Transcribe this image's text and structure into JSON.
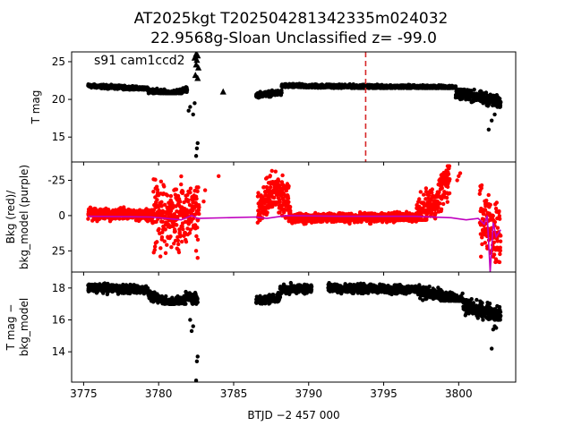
{
  "chart_data": {
    "title_line1": "AT2025kgt  T202504281342335m024032",
    "title_line2": "22.9568g-Sloan Unclassified z= -99.0",
    "xlabel": "BTJD −2 457 000",
    "x_ticks": [
      3775,
      3780,
      3785,
      3790,
      3795,
      3800
    ],
    "xlim": [
      3774.2,
      3803.8
    ],
    "panels": [
      {
        "id": "tmag",
        "type": "scatter",
        "ylabel": "T mag",
        "ylim": [
          26.3,
          11.7
        ],
        "y_ticks": [
          15,
          20,
          25
        ],
        "annotation": "s91 cam1ccd2",
        "vline": {
          "x": 3793.8,
          "color": "#d62728"
        },
        "series": [
          {
            "color": "#000000",
            "marker": "circle",
            "segments": [
              {
                "x0": 3775.3,
                "x1": 3779.3,
                "y": [
                  21.3,
                  22.0
                ],
                "trend": [
                  [
                    0,
                    21.8
                  ],
                  [
                    1,
                    21.4
                  ]
                ]
              },
              {
                "x0": 3779.3,
                "x1": 3781.9,
                "y": [
                  20.8,
                  21.8
                ],
                "trend": [
                  [
                    0,
                    21.2
                  ],
                  [
                    0.6,
                    20.8
                  ],
                  [
                    1,
                    21.3
                  ]
                ]
              },
              {
                "x0": 3786.5,
                "x1": 3788.2,
                "y": [
                  20.2,
                  21.2
                ],
                "trend": [
                  [
                    0,
                    20.6
                  ],
                  [
                    1,
                    20.9
                  ]
                ]
              },
              {
                "x0": 3788.2,
                "x1": 3799.8,
                "y": [
                  21.5,
                  22.2
                ],
                "trend": [
                  [
                    0,
                    21.8
                  ],
                  [
                    1,
                    21.6
                  ]
                ]
              },
              {
                "x0": 3799.8,
                "x1": 3802.8,
                "y": [
                  19.0,
                  21.3
                ],
                "trend": [
                  [
                    0,
                    21.0
                  ],
                  [
                    0.8,
                    19.9
                  ],
                  [
                    1,
                    19.5
                  ]
                ]
              }
            ],
            "points": [
              [
                3782.0,
                18.5
              ],
              [
                3782.1,
                19.0
              ],
              [
                3782.3,
                18.0
              ],
              [
                3782.4,
                19.5
              ],
              [
                3782.5,
                12.5
              ],
              [
                3782.55,
                13.5
              ],
              [
                3782.6,
                14.2
              ],
              [
                3802.0,
                16.0
              ],
              [
                3802.2,
                17.2
              ],
              [
                3802.4,
                18.0
              ]
            ]
          },
          {
            "color": "#000000",
            "marker": "triangle",
            "points": [
              [
                3784.3,
                21.0
              ],
              [
                3782.45,
                23.2
              ],
              [
                3782.5,
                24.6
              ],
              [
                3782.55,
                25.2
              ],
              [
                3782.6,
                25.8
              ],
              [
                3782.65,
                24.2
              ],
              [
                3782.5,
                26.0
              ],
              [
                3782.4,
                25.5
              ],
              [
                3782.6,
                22.8
              ]
            ]
          }
        ]
      },
      {
        "id": "bkg",
        "type": "scatter+line",
        "ylabel_line1": "Bkg (red)/",
        "ylabel_line2": "bkg_model (purple)",
        "ylim": [
          -38,
          40
        ],
        "y_ticks": [
          -25,
          0,
          25
        ],
        "series": [
          {
            "name": "Bkg",
            "color": "#ff0000",
            "marker": "circle",
            "segments": [
              {
                "x0": 3775.3,
                "x1": 3779.6,
                "y": [
                  -8,
                  4
                ],
                "trend": [
                  [
                    0,
                    -1
                  ],
                  [
                    1,
                    -1
                  ]
                ]
              },
              {
                "x0": 3779.6,
                "x1": 3781.6,
                "y": [
                  -35,
                  35
                ],
                "trend": [
                  [
                    0,
                    0
                  ],
                  [
                    1,
                    0
                  ]
                ]
              },
              {
                "x0": 3781.6,
                "x1": 3782.7,
                "y": [
                  -20,
                  32
                ],
                "trend": [
                  [
                    0,
                    3
                  ],
                  [
                    1,
                    -5
                  ]
                ]
              },
              {
                "x0": 3786.6,
                "x1": 3788.8,
                "y": [
                  -35,
                  5
                ],
                "trend": [
                  [
                    0,
                    -2
                  ],
                  [
                    0.5,
                    -20
                  ],
                  [
                    1,
                    -5
                  ]
                ]
              },
              {
                "x0": 3788.8,
                "x1": 3797.2,
                "y": [
                  -4,
                  6
                ],
                "trend": [
                  [
                    0,
                    2
                  ],
                  [
                    1,
                    1
                  ]
                ]
              },
              {
                "x0": 3797.2,
                "x1": 3799.4,
                "y": [
                  -35,
                  3
                ],
                "trend": [
                  [
                    0,
                    0
                  ],
                  [
                    0.6,
                    -10
                  ],
                  [
                    1,
                    -30
                  ]
                ]
              },
              {
                "x0": 3801.4,
                "x1": 3802.8,
                "y": [
                  -30,
                  33
                ],
                "trend": [
                  [
                    0,
                    0
                  ],
                  [
                    1,
                    15
                  ]
                ]
              }
            ],
            "points": [
              [
                3784.0,
                -28
              ],
              [
                3783.0,
                -10
              ],
              [
                3783.1,
                -18
              ],
              [
                3800.0,
                -28
              ],
              [
                3800.1,
                -30
              ],
              [
                3799.9,
                -25
              ],
              [
                3782.5,
                25
              ],
              [
                3782.6,
                30
              ]
            ]
          },
          {
            "name": "bkg_model",
            "color": "#bf00bf",
            "line": [
              [
                3775.3,
                0.5
              ],
              [
                3778.0,
                0.8
              ],
              [
                3779.5,
                1.0
              ],
              [
                3780.5,
                2.0
              ],
              [
                3781.5,
                3.0
              ],
              [
                3782.2,
                0.0
              ],
              [
                3782.6,
                2.0
              ],
              [
                3786.5,
                1.0
              ],
              [
                3787.2,
                2.0
              ],
              [
                3788.5,
                0.0
              ],
              [
                3792.0,
                0.5
              ],
              [
                3797.0,
                0.5
              ],
              [
                3799.5,
                1.5
              ],
              [
                3800.5,
                3.0
              ],
              [
                3801.3,
                2.0
              ],
              [
                3801.7,
                6.0
              ],
              [
                3801.9,
                0.0
              ],
              [
                3802.1,
                40.0
              ],
              [
                3802.3,
                5.0
              ],
              [
                3802.5,
                15.0
              ],
              [
                3802.8,
                10.0
              ]
            ]
          }
        ]
      },
      {
        "id": "diff",
        "type": "scatter",
        "ylabel_line1": "T mag −",
        "ylabel_line2": "bkg_model",
        "ylim": [
          19.0,
          12.1
        ],
        "y_ticks": [
          14,
          16,
          18
        ],
        "series": [
          {
            "color": "#000000",
            "marker": "circle",
            "segments": [
              {
                "x0": 3775.3,
                "x1": 3779.3,
                "y": [
                  17.6,
                  18.4
                ],
                "trend": [
                  [
                    0,
                    18.0
                  ],
                  [
                    1,
                    17.9
                  ]
                ]
              },
              {
                "x0": 3779.3,
                "x1": 3781.8,
                "y": [
                  17.0,
                  17.8
                ],
                "trend": [
                  [
                    0,
                    17.5
                  ],
                  [
                    0.6,
                    17.1
                  ],
                  [
                    1,
                    17.3
                  ]
                ]
              },
              {
                "x0": 3781.8,
                "x1": 3782.6,
                "y": [
                  17.0,
                  18.2
                ],
                "trend": [
                  [
                    0,
                    17.6
                  ],
                  [
                    1,
                    17.2
                  ]
                ]
              },
              {
                "x0": 3786.5,
                "x1": 3788.1,
                "y": [
                  16.9,
                  17.7
                ],
                "trend": [
                  [
                    0,
                    17.2
                  ],
                  [
                    1,
                    17.4
                  ]
                ]
              },
              {
                "x0": 3788.1,
                "x1": 3790.2,
                "y": [
                  17.6,
                  18.4
                ],
                "trend": [
                  [
                    0,
                    17.9
                  ],
                  [
                    1,
                    18.0
                  ]
                ]
              },
              {
                "x0": 3791.3,
                "x1": 3797.3,
                "y": [
                  17.6,
                  18.4
                ],
                "trend": [
                  [
                    0,
                    18.0
                  ],
                  [
                    1,
                    17.9
                  ]
                ]
              },
              {
                "x0": 3797.3,
                "x1": 3800.3,
                "y": [
                  17.2,
                  18.3
                ],
                "trend": [
                  [
                    0,
                    17.8
                  ],
                  [
                    1,
                    17.2
                  ]
                ]
              },
              {
                "x0": 3800.3,
                "x1": 3802.8,
                "y": [
                  16.0,
                  17.4
                ],
                "trend": [
                  [
                    0,
                    16.9
                  ],
                  [
                    1,
                    16.3
                  ]
                ]
              }
            ],
            "points": [
              [
                3782.5,
                12.2
              ],
              [
                3782.55,
                13.4
              ],
              [
                3782.6,
                13.7
              ],
              [
                3782.2,
                15.3
              ],
              [
                3782.3,
                15.6
              ],
              [
                3782.1,
                16.0
              ],
              [
                3802.2,
                14.2
              ],
              [
                3802.3,
                15.4
              ],
              [
                3802.4,
                15.6
              ],
              [
                3802.5,
                15.5
              ],
              [
                3801.2,
                16.4
              ]
            ]
          }
        ]
      }
    ]
  }
}
